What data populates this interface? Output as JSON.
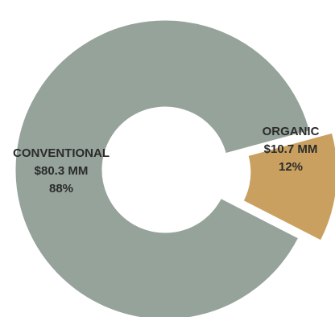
{
  "chart_data": {
    "type": "pie",
    "variant": "donut",
    "slices": [
      {
        "category": "CONVENTIONAL",
        "value": 80.3,
        "value_label": "$80.3 MM",
        "percent": 88,
        "percent_label": "88%",
        "color": "#95a39a",
        "exploded": false
      },
      {
        "category": "ORGANIC",
        "value": 10.7,
        "value_label": "$10.7 MM",
        "percent": 12,
        "percent_label": "12%",
        "color": "#c9a05f",
        "exploded": true
      }
    ],
    "legend": "none",
    "label_color": "#2b2b2b"
  }
}
